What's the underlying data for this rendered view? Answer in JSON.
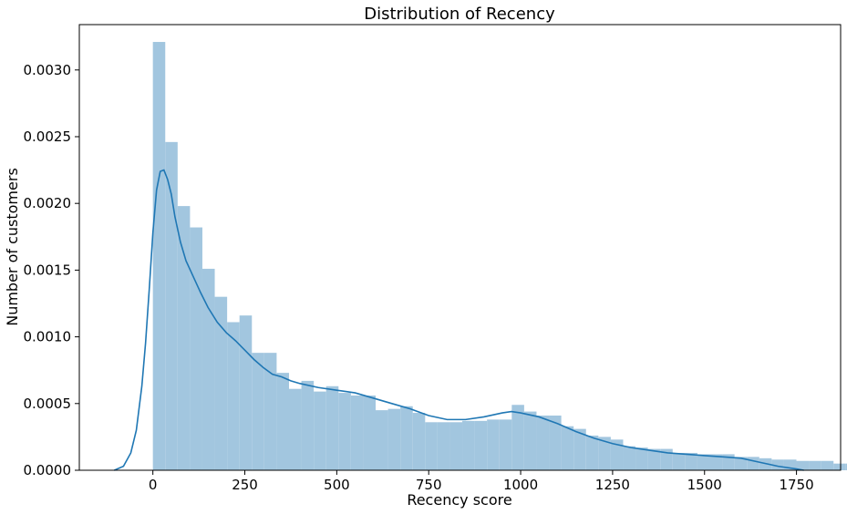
{
  "chart_data": {
    "type": "bar",
    "title": "Distribution of Recency",
    "xlabel": "Recency score",
    "ylabel": "Number of customers",
    "xlim": [
      -200,
      1870
    ],
    "ylim": [
      0,
      0.00334
    ],
    "x_ticks": [
      0,
      250,
      500,
      750,
      1000,
      1250,
      1500,
      1750
    ],
    "y_ticks": [
      0.0,
      0.0005,
      0.001,
      0.0015,
      0.002,
      0.0025,
      0.003
    ],
    "y_tick_labels": [
      "0.0000",
      "0.0005",
      "0.0010",
      "0.0015",
      "0.0020",
      "0.0025",
      "0.0030"
    ],
    "bin_width": 33.65,
    "bins_start": 0,
    "histogram_density": [
      0.00321,
      0.00246,
      0.00198,
      0.00182,
      0.00151,
      0.0013,
      0.00111,
      0.00116,
      0.00088,
      0.00088,
      0.00073,
      0.00061,
      0.00067,
      0.00059,
      0.00063,
      0.00058,
      0.00056,
      0.00056,
      0.00045,
      0.00046,
      0.00048,
      0.00043,
      0.00036,
      0.00036,
      0.00036,
      0.00037,
      0.00037,
      0.00038,
      0.00038,
      0.00049,
      0.00044,
      0.00041,
      0.00041,
      0.00033,
      0.00031,
      0.00026,
      0.00025,
      0.00023,
      0.00018,
      0.00017,
      0.00016,
      0.00016,
      0.00013,
      0.00013,
      0.00012,
      0.00012,
      0.00012,
      0.0001,
      0.0001,
      9e-05,
      8e-05,
      8e-05,
      7e-05,
      7e-05,
      7e-05,
      5e-05,
      5e-05,
      5e-05,
      4e-05,
      4e-05
    ],
    "kde": {
      "x": [
        -105,
        -80,
        -60,
        -45,
        -30,
        -20,
        -10,
        0,
        10,
        20,
        30,
        40,
        50,
        60,
        75,
        90,
        110,
        130,
        150,
        175,
        200,
        225,
        250,
        275,
        300,
        325,
        350,
        375,
        400,
        450,
        500,
        550,
        600,
        650,
        700,
        750,
        800,
        850,
        900,
        950,
        975,
        1000,
        1050,
        1100,
        1150,
        1200,
        1250,
        1300,
        1350,
        1400,
        1450,
        1500,
        1550,
        1600,
        1650,
        1700,
        1750,
        1770
      ],
      "y": [
        0.0,
        3e-05,
        0.00013,
        0.0003,
        0.00063,
        0.00095,
        0.00135,
        0.00178,
        0.0021,
        0.00224,
        0.00225,
        0.00218,
        0.00207,
        0.0019,
        0.00171,
        0.00157,
        0.00145,
        0.00133,
        0.00122,
        0.00111,
        0.00103,
        0.00097,
        0.0009,
        0.00083,
        0.00077,
        0.00072,
        0.0007,
        0.00067,
        0.00065,
        0.00062,
        0.0006,
        0.00058,
        0.00054,
        0.0005,
        0.00046,
        0.00041,
        0.00038,
        0.00038,
        0.0004,
        0.00043,
        0.00044,
        0.00043,
        0.0004,
        0.00035,
        0.00029,
        0.00024,
        0.0002,
        0.00017,
        0.00015,
        0.00013,
        0.00012,
        0.00011,
        0.0001,
        9e-05,
        6e-05,
        3e-05,
        1e-05,
        0.0
      ]
    },
    "colors": {
      "bars": "#a2c6df",
      "kde": "#1f77b4"
    },
    "grid": false,
    "legend": "none"
  }
}
